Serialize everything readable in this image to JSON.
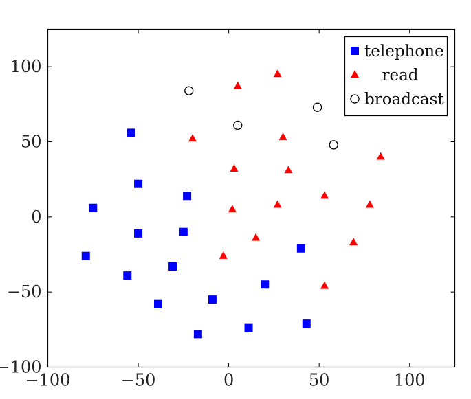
{
  "chart_data": {
    "type": "scatter",
    "xlim": [
      -100,
      125
    ],
    "ylim": [
      -100,
      125
    ],
    "xticks": [
      -100,
      -50,
      0,
      50,
      100
    ],
    "yticks": [
      -100,
      -50,
      0,
      50,
      100
    ],
    "xtick_labels": [
      "−100",
      "−50",
      "0",
      "50",
      "100"
    ],
    "ytick_labels": [
      "−100",
      "−50",
      "0",
      "50",
      "100"
    ],
    "grid": false,
    "legend_position": "top-right",
    "series": [
      {
        "name": "telephone",
        "marker": "square",
        "color": "#0000ff",
        "points": [
          [
            -54,
            56
          ],
          [
            -50,
            22
          ],
          [
            -75,
            6
          ],
          [
            -23,
            14
          ],
          [
            -50,
            -11
          ],
          [
            -25,
            -10
          ],
          [
            -79,
            -26
          ],
          [
            -56,
            -39
          ],
          [
            -31,
            -33
          ],
          [
            -39,
            -58
          ],
          [
            -9,
            -55
          ],
          [
            -17,
            -78
          ],
          [
            20,
            -45
          ],
          [
            11,
            -74
          ],
          [
            40,
            -21
          ],
          [
            43,
            -71
          ]
        ]
      },
      {
        "name": "read",
        "marker": "triangle",
        "color": "#ff0000",
        "points": [
          [
            27,
            95
          ],
          [
            5,
            87
          ],
          [
            -20,
            52
          ],
          [
            30,
            53
          ],
          [
            3,
            32
          ],
          [
            33,
            31
          ],
          [
            84,
            40
          ],
          [
            2,
            5
          ],
          [
            27,
            8
          ],
          [
            53,
            14
          ],
          [
            78,
            8
          ],
          [
            15,
            -14
          ],
          [
            -3,
            -26
          ],
          [
            69,
            -17
          ],
          [
            53,
            -46
          ]
        ]
      },
      {
        "name": "broadcast",
        "marker": "circle",
        "color": "#000000",
        "points": [
          [
            -22,
            84
          ],
          [
            49,
            73
          ],
          [
            5,
            61
          ],
          [
            58,
            48
          ]
        ]
      }
    ]
  }
}
